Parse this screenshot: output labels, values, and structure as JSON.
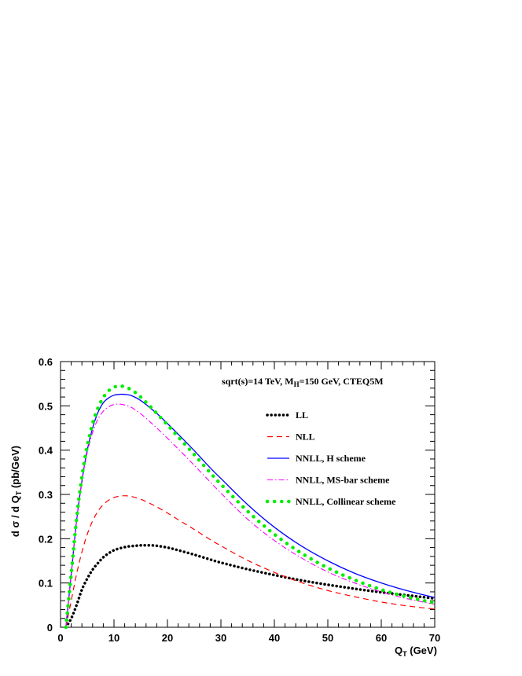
{
  "chart_data": {
    "type": "line",
    "title": "",
    "annotation": {
      "prefix": "sqrt(s)=14 TeV, M",
      "sub": "H",
      "suffix": "=150 GeV, CTEQ5M"
    },
    "xlabel": {
      "main": "Q",
      "sub": "T",
      "rest": " (GeV)"
    },
    "ylabel": {
      "pre": "d σ / d Q",
      "sub": "T",
      "rest": " (pb/GeV)"
    },
    "xlim": [
      0,
      70
    ],
    "ylim": [
      0,
      0.6
    ],
    "xticks": [
      0,
      10,
      20,
      30,
      40,
      50,
      60,
      70
    ],
    "xtick_labels": [
      "0",
      "10",
      "20",
      "30",
      "40",
      "50",
      "60",
      "70"
    ],
    "yticks": [
      0,
      0.1,
      0.2,
      0.3,
      0.4,
      0.5,
      0.6
    ],
    "ytick_labels": [
      "0",
      "0.1",
      "0.2",
      "0.3",
      "0.4",
      "0.5",
      "0.6"
    ],
    "grid": false,
    "legend_position": "top-right",
    "x": [
      1,
      2,
      3,
      4,
      5,
      6,
      7,
      8,
      9,
      10,
      11,
      12,
      13,
      14,
      15,
      16,
      17,
      18,
      20,
      22,
      25,
      28,
      30,
      35,
      40,
      45,
      50,
      55,
      60,
      65,
      70
    ],
    "series": [
      {
        "name": "LL",
        "color": "#000000",
        "style": "dotted-thick",
        "values": [
          0.0,
          0.02,
          0.05,
          0.085,
          0.11,
          0.13,
          0.145,
          0.158,
          0.167,
          0.174,
          0.178,
          0.181,
          0.183,
          0.184,
          0.185,
          0.185,
          0.185,
          0.184,
          0.18,
          0.174,
          0.164,
          0.153,
          0.146,
          0.131,
          0.118,
          0.106,
          0.096,
          0.087,
          0.079,
          0.072,
          0.065
        ]
      },
      {
        "name": "NLL",
        "color": "#ff0000",
        "style": "dashed",
        "values": [
          0.0,
          0.06,
          0.12,
          0.17,
          0.21,
          0.24,
          0.262,
          0.277,
          0.287,
          0.293,
          0.296,
          0.297,
          0.296,
          0.293,
          0.289,
          0.284,
          0.278,
          0.272,
          0.258,
          0.243,
          0.221,
          0.198,
          0.184,
          0.151,
          0.124,
          0.101,
          0.083,
          0.069,
          0.057,
          0.048,
          0.041
        ]
      },
      {
        "name": "NNLL, H scheme",
        "color": "#0000ff",
        "style": "solid",
        "values": [
          0.0,
          0.12,
          0.24,
          0.33,
          0.4,
          0.45,
          0.485,
          0.507,
          0.518,
          0.524,
          0.526,
          0.526,
          0.524,
          0.519,
          0.512,
          0.503,
          0.493,
          0.483,
          0.46,
          0.436,
          0.399,
          0.36,
          0.336,
          0.277,
          0.226,
          0.184,
          0.15,
          0.122,
          0.1,
          0.082,
          0.067
        ]
      },
      {
        "name": "NNLL, MS-bar scheme",
        "color": "#ff00ff",
        "style": "dash-dot",
        "values": [
          0.0,
          0.12,
          0.24,
          0.33,
          0.395,
          0.44,
          0.47,
          0.488,
          0.498,
          0.503,
          0.504,
          0.502,
          0.498,
          0.491,
          0.482,
          0.472,
          0.461,
          0.45,
          0.427,
          0.403,
          0.366,
          0.328,
          0.303,
          0.244,
          0.196,
          0.157,
          0.125,
          0.1,
          0.08,
          0.064,
          0.052
        ]
      },
      {
        "name": "NNLL, Collinear scheme",
        "color": "#00ee00",
        "style": "dotted-green",
        "values": [
          0.0,
          0.12,
          0.245,
          0.34,
          0.41,
          0.46,
          0.495,
          0.519,
          0.534,
          0.542,
          0.545,
          0.543,
          0.538,
          0.53,
          0.52,
          0.508,
          0.496,
          0.483,
          0.457,
          0.43,
          0.39,
          0.349,
          0.323,
          0.262,
          0.21,
          0.168,
          0.134,
          0.107,
          0.085,
          0.068,
          0.055
        ]
      }
    ]
  }
}
